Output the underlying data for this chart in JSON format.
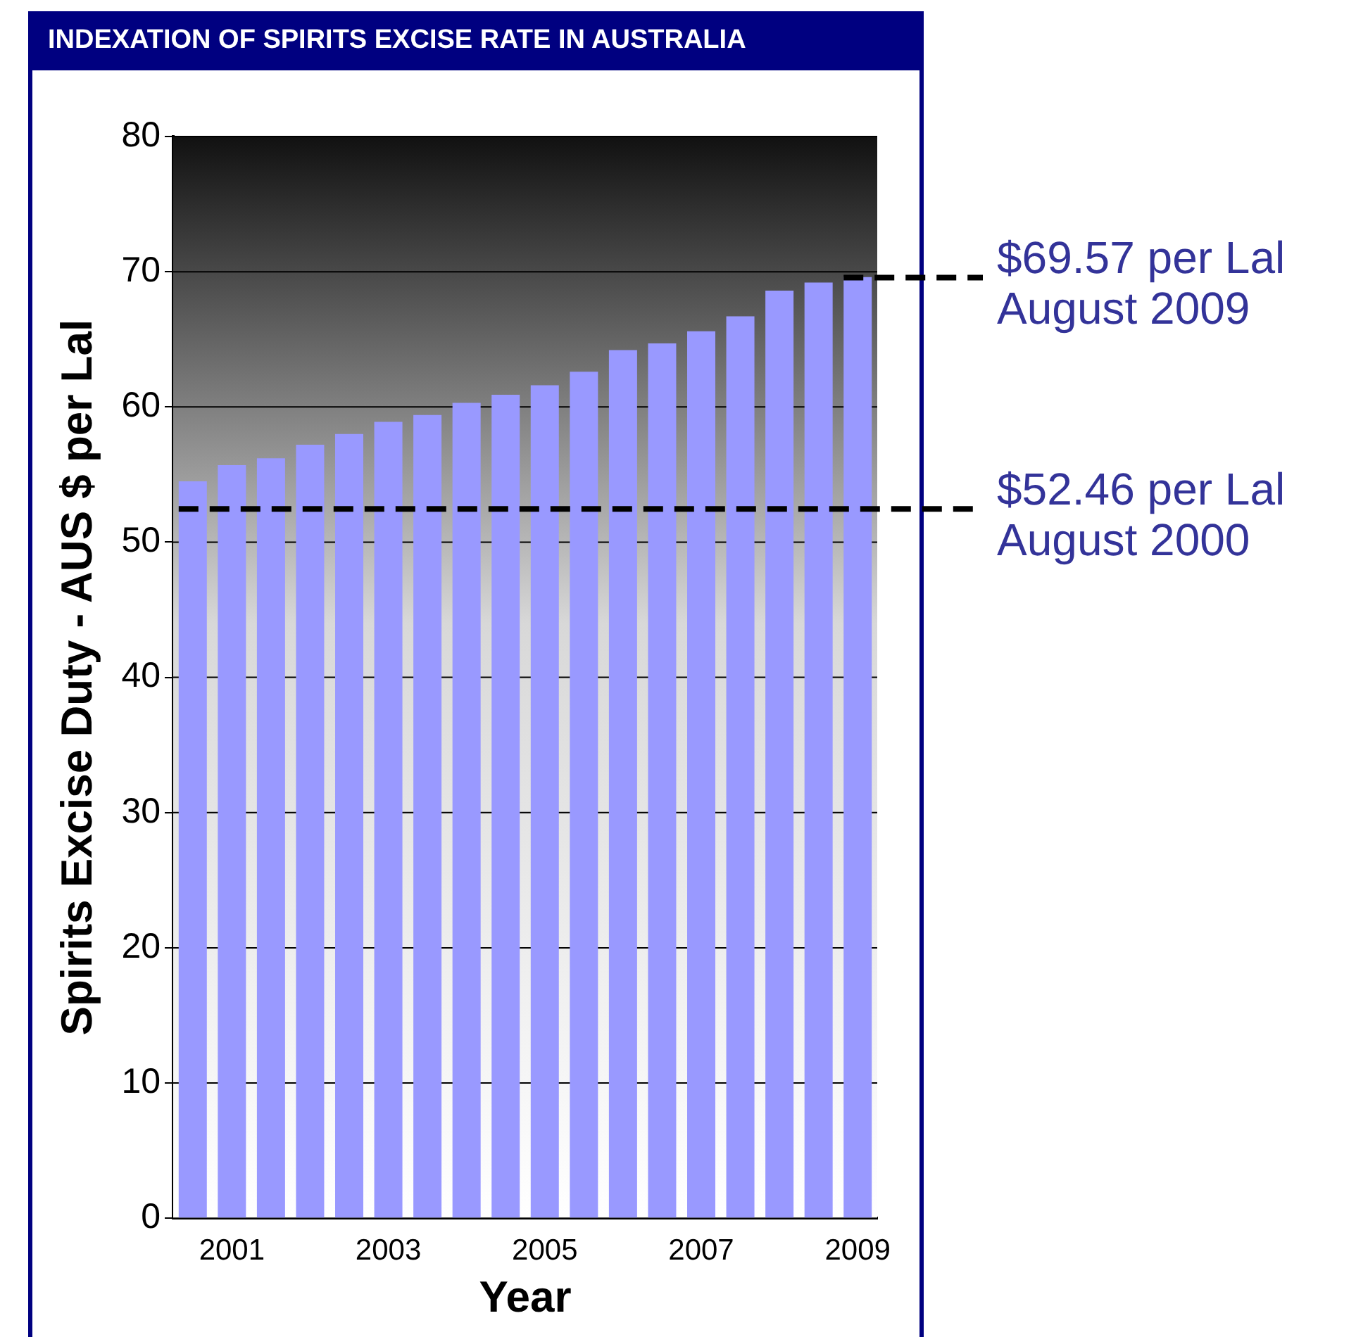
{
  "chart_data": {
    "type": "bar",
    "title": "INDEXATION OF SPIRITS EXCISE RATE IN AUSTRALIA",
    "xlabel": "Year",
    "ylabel": "Spirits Excise Duty - AUS $ per Lal",
    "categories": [
      null,
      "2001",
      null,
      null,
      null,
      "2003",
      null,
      null,
      null,
      "2005",
      null,
      null,
      null,
      "2007",
      null,
      null,
      null,
      "2009"
    ],
    "values": [
      54.5,
      55.7,
      56.2,
      57.2,
      58.0,
      58.9,
      59.4,
      60.3,
      60.9,
      61.6,
      62.6,
      64.2,
      64.7,
      65.6,
      66.7,
      68.6,
      69.2,
      69.6
    ],
    "color": "#9999ff",
    "ylim": [
      0,
      80
    ],
    "yticks": [
      0,
      10,
      20,
      30,
      40,
      50,
      60,
      70,
      80
    ],
    "grid": "y",
    "legend": false,
    "ref_lines": [
      {
        "axis": "y",
        "value": 69.57,
        "label": "$69.57 per Lal\nAugust 2009",
        "color": "#000000",
        "line_style": "dashed"
      },
      {
        "axis": "y",
        "value": 52.46,
        "label": "$52.46 per Lal\nAugust 2000",
        "color": "#000000",
        "line_style": "dashed"
      }
    ]
  }
}
